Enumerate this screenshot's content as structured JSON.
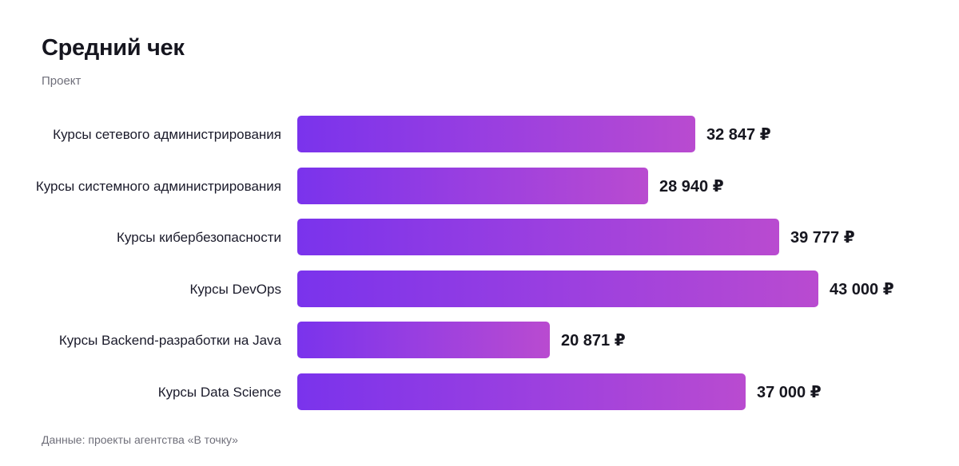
{
  "header": {
    "title": "Средний чек",
    "subtitle": "Проект"
  },
  "footer": {
    "source": "Данные: проекты агентства «В точку»"
  },
  "colors": {
    "bar_gradient_start": "#7a33ec",
    "bar_gradient_end": "#b94bd0",
    "text": "#16161f",
    "muted": "#6f6f7a"
  },
  "chart_data": {
    "type": "bar",
    "orientation": "horizontal",
    "title": "Средний чек",
    "subtitle": "Проект",
    "categories": [
      "Курсы сетевого администрирования",
      "Курсы системного администрирования",
      "Курсы кибербезопасности",
      "Курсы DevOps",
      "Курсы Backend-разработки на Java",
      "Курсы Data Science"
    ],
    "values": [
      32847,
      28940,
      39777,
      43000,
      20871,
      37000
    ],
    "value_labels": [
      "32 847 ₽",
      "28 940 ₽",
      "39 777 ₽",
      "43 000 ₽",
      "20 871 ₽",
      "37 000 ₽"
    ],
    "unit": "₽",
    "xlim": [
      0,
      43000
    ],
    "grid": false,
    "legend": "none"
  }
}
